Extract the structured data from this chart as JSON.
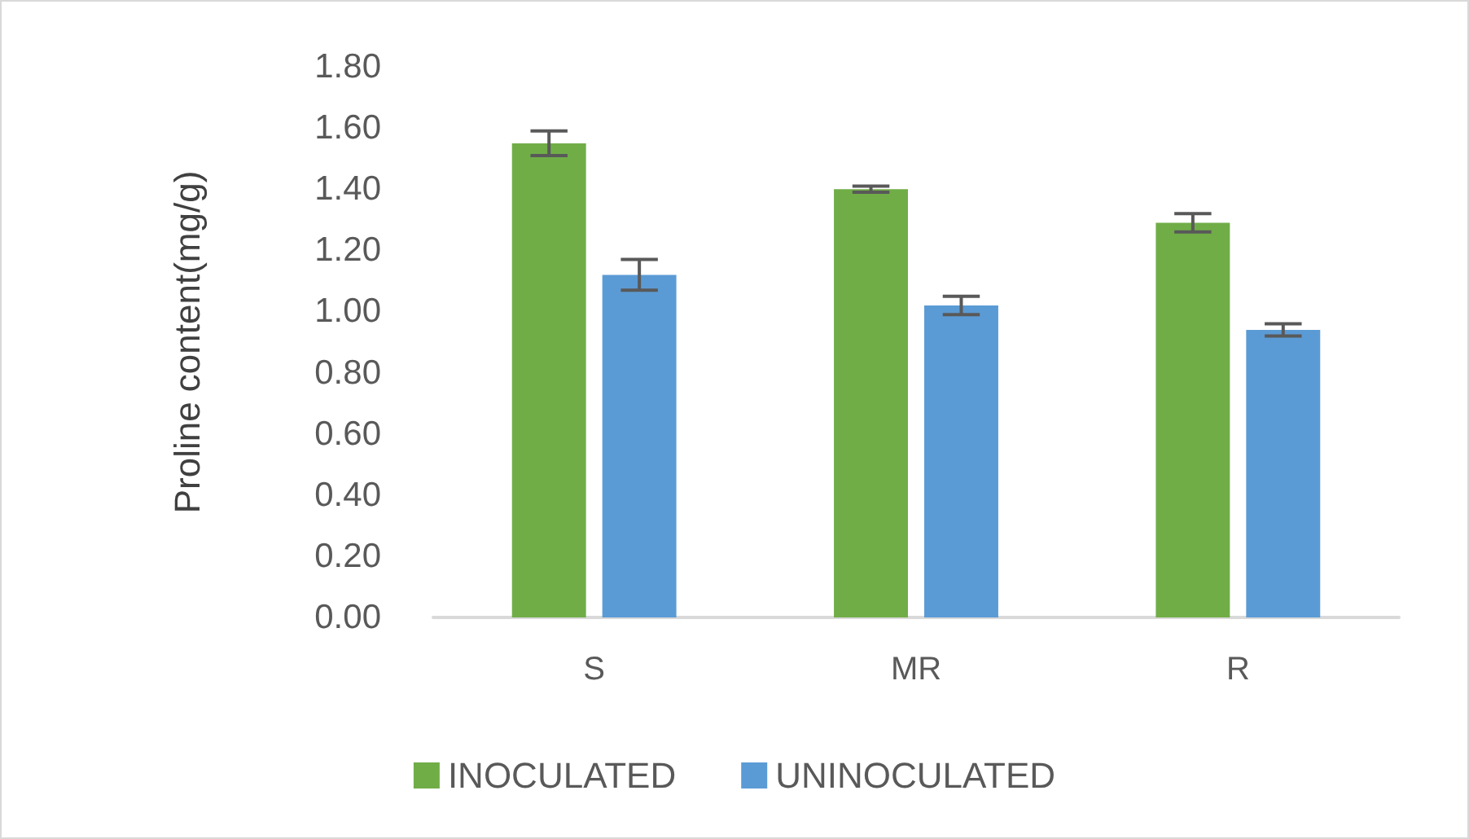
{
  "chart_data": {
    "type": "bar",
    "ylabel": "Proline content(mg/g)",
    "categories": [
      "S",
      "MR",
      "R"
    ],
    "series": [
      {
        "name": "INOCULATED",
        "color": "#70ad47",
        "values": [
          1.55,
          1.4,
          1.29
        ],
        "errors": [
          0.04,
          0.01,
          0.03
        ]
      },
      {
        "name": "UNINOCULATED",
        "color": "#5b9bd5",
        "values": [
          1.12,
          1.02,
          0.94
        ],
        "errors": [
          0.05,
          0.03,
          0.02
        ]
      }
    ],
    "ylim": [
      0,
      1.8
    ],
    "yticks": [
      {
        "value": 0,
        "label": "0.00"
      },
      {
        "value": 0.2,
        "label": "0.20"
      },
      {
        "value": 0.4,
        "label": "0.40"
      },
      {
        "value": 0.6,
        "label": "0.60"
      },
      {
        "value": 0.8,
        "label": "0.80"
      },
      {
        "value": 1.0,
        "label": "1.00"
      },
      {
        "value": 1.2,
        "label": "1.20"
      },
      {
        "value": 1.4,
        "label": "1.40"
      },
      {
        "value": 1.6,
        "label": "1.60"
      },
      {
        "value": 1.8,
        "label": "1.80"
      }
    ],
    "legend": "bottom"
  }
}
